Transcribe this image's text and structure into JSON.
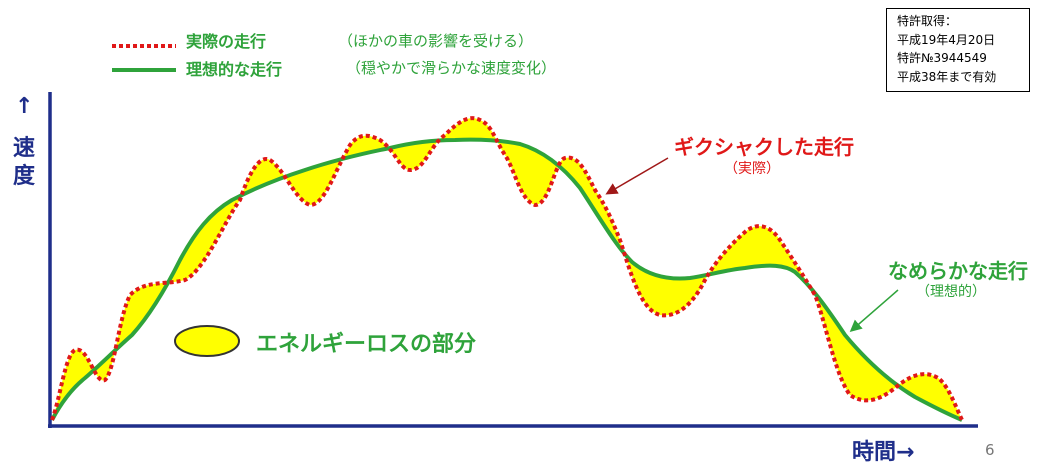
{
  "legend": {
    "actual_label": "実際の走行",
    "actual_note": "（ほかの車の影響を受ける）",
    "ideal_label": "理想的な走行",
    "ideal_note": "（穏やかで滑らかな速度変化）"
  },
  "patent": {
    "line1": "特許取得：",
    "line2": "平成19年4月20日",
    "line3": "特許№3944549",
    "line4": "平成38年まで有効"
  },
  "axes": {
    "y_arrow": "↑",
    "y_char1": "速",
    "y_char2": "度",
    "x_label": "時間→"
  },
  "annotations": {
    "jerky_label": "ギクシャクした走行",
    "jerky_sub": "（実際）",
    "smooth_label": "なめらかな走行",
    "smooth_sub": "（理想的）",
    "energy_loss_label": "エネルギーロスの部分"
  },
  "page_number": "6",
  "colors": {
    "axis": "#1f2e8a",
    "actual_line": "#e01818",
    "ideal_line": "#2fa33b",
    "loss_fill": "#ffff00"
  }
}
